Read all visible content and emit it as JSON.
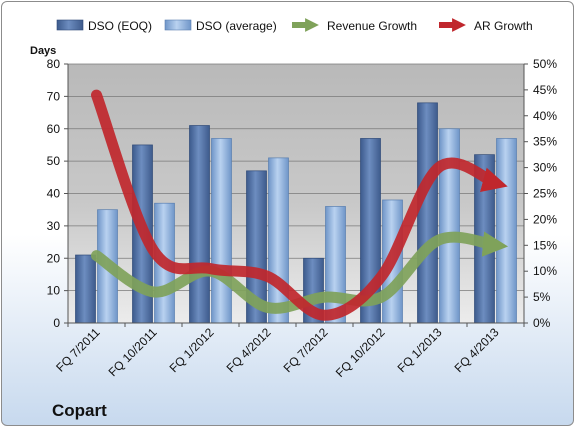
{
  "chart_data": {
    "type": "bar",
    "company": "Copart",
    "y_left_label": "Days",
    "y_left_range": [
      0,
      80
    ],
    "y_left_ticks": [
      "0",
      "10",
      "20",
      "30",
      "40",
      "50",
      "60",
      "70",
      "80"
    ],
    "y_right_range": [
      0,
      50
    ],
    "y_right_ticks": [
      "0%",
      "5%",
      "10%",
      "15%",
      "20%",
      "25%",
      "30%",
      "35%",
      "40%",
      "45%",
      "50%"
    ],
    "categories": [
      "FQ 7/2011",
      "FQ 10/2011",
      "FQ 1/2012",
      "FQ 4/2012",
      "FQ 7/2012",
      "FQ 10/2012",
      "FQ 1/2013",
      "FQ 4/2013"
    ],
    "grid": true,
    "legend_position": "top",
    "series": [
      {
        "name": "DSO (EOQ)",
        "kind": "bar",
        "axis": "left",
        "color": "#4f6fa6",
        "values": [
          21,
          55,
          61,
          47,
          20,
          57,
          68,
          52
        ]
      },
      {
        "name": "DSO (average)",
        "kind": "bar",
        "axis": "left",
        "color": "#8fb3df",
        "values": [
          35,
          37,
          57,
          51,
          36,
          38,
          60,
          57
        ]
      },
      {
        "name": "Revenue Growth",
        "kind": "line",
        "axis": "right",
        "color": "#7fa25a",
        "values": [
          13,
          6,
          10,
          3,
          5,
          5,
          16,
          15
        ]
      },
      {
        "name": "AR Growth",
        "kind": "line",
        "axis": "right",
        "color": "#c0272d",
        "values": [
          44,
          14,
          10.5,
          9,
          1.5,
          9,
          30,
          27
        ]
      }
    ]
  }
}
